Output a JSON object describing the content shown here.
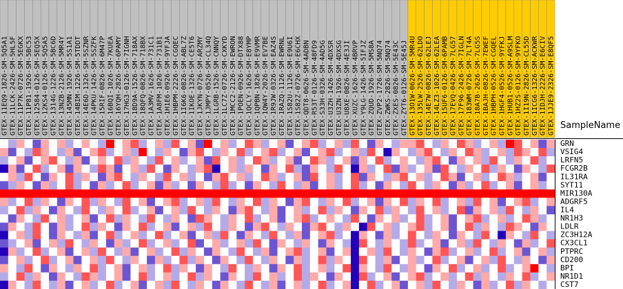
{
  "chart_data": {
    "type": "heatmap",
    "column_title": "SampleName",
    "column_groups": [
      {
        "color": "#c0c0c0",
        "samples": [
          "GTEX-11EQ9-1826-SM-5Q5A1",
          "GTEX-11LCK-2426-SM-5HL5F",
          "GTEX-11P7K-0726-SM-5EGKX",
          "GTEX-11P81-1926-SM-5BC53",
          "GTEX-12584-0126-SM-5EQ5X",
          "GTEX-12KS4-0126-SM-5Q5A5",
          "GTEX-1314G-1226-SM-5BC6D",
          "GTEX-13NZB-2126-SM-5MR4Y",
          "GTEX-145MN-1926-SM-5S1A1",
          "GTEX-14BIM-1226-SM-5TDDT",
          "GTEX-14E6D-1326-SM-5SZNR",
          "GTEX-14PKU-1426-SM-5SZFK",
          "GTEX-15RIF-0826-SM-6M47P",
          "GTEX-16BQI-1026-SM-7KUEA",
          "GTEX-16YQH-2826-SM-6PAMY",
          "GTEX-17HG3-0126-SM-7IGNH",
          "GTEX-18D9A-1526-SM-718AX",
          "GTEX-18QFQ-0826-SM-718BX",
          "GTEX-1A3MV-1626-SM-731C1",
          "GTEX-1A8FM-1026-SM-731B1",
          "GTEX-1H1E6-0926-SM-9YFJA",
          "GTEX-1HBPM-2226-SM-CGQEC",
          "GTEX-1I6K6-0826-SM-ABL7Z",
          "GTEX-1IKOE-1326-SM-CE5T6",
          "GTEX-1JKYN-0726-SM-ARZMY",
          "GTEX-1JMPY-0526-SM-CL34Q",
          "GTEX-1LGRB-1526-SM-CNNQY",
          "GTEX-1LC7Z-0726-SM-CXKYD",
          "GTEX-1MCC2-2126-SM-EWRON",
          "GTEX-1POEN-0926-SM-DTX88",
          "GTEX-1QCLY-1626-SM-E8YMP",
          "GTEX-1QPBN-1826-SM-E9VMR",
          "GTEX-1QW4Y-2026-SM-EV7BE",
          "GTEX-1R9JW-0326-SM-EAZ4S",
          "GTEX-1RAZQ-1126-SM-EWRNL",
          "GTEX-1S82U-1126-SM-E9U6I",
          "GTEX-1S82Z-0726-SM-E6CHX",
          "GTEX-QDT8-0626-SM-4ADBN",
          "GTEX-R53T-0126-SM-48FD9",
          "GTEX-S33H-0326-SM-4AD5G",
          "GTEX-U3ZH-1426-SM-4DXSR",
          "GTEX-U3ZN-1926-SM-4DXSG",
          "GTEX-U8XE-0826-SM-4E3JI",
          "GTEX-XUZC-1626-SM-4BRVP",
          "GTEX-Y9LG-1426-SM-5IFJZ",
          "GTEX-ZQUD-1926-SM-5MS8A",
          "GTEX-ZVP2-1726-SM-5NQ74",
          "GTEX-ZWKS-2826-SM-5NQ74",
          "GTEX-ZXES-0826-SM-5E43C",
          "GTEX-ZYT6-0126-SM-5E45J"
        ]
      },
      {
        "color": "#ffcc00",
        "samples": [
          "GTEX-13O1W-0626-SM-5MR4U",
          "GTEX-135LW-2526-SM-62LDO",
          "GTEX-14E7W-0826-SM-62LEJ",
          "GTEX-14LZ3-1026-SM-62LEA",
          "GTEX-15UF6-0126-SM-6PAMB",
          "GTEX-17EVQ-0426-SM-7LG57",
          "GTEX-17F96-2426-SM-7IGLN",
          "GTEX-183WM-0726-SM-7LT4A",
          "GTEX-18A7B-2626-SM-7LG5S",
          "GTEX-1BAJH-0826-SM-7EWEF",
          "GTEX-1HBPH-0526-SM-CGQEL",
          "GTEX-1HGF4-0526-SM-9YFKJ",
          "GTEX-1HUB1-0526-SM-A9SLM",
          "GTEX-1HZ2S-0126-SM-9YFKO",
          "GTEX-1I19N-2826-SM-CL55D",
          "GTEX-1ICG6-1326-SM-ACKWR",
          "GTEX-1IDJH-2226-SM-E6CIV",
          "GTEX-1JJE9-2326-SM-E8QF5"
        ]
      }
    ],
    "rows": [
      "GRN",
      "VSIG4",
      "LRFN5",
      "FCGR2B",
      "IL31RA",
      "SYT11",
      "MIR130A",
      "ADGRF5",
      "IL4",
      "NR1H3",
      "LDLR",
      "ZC3H12A",
      "CX3CL1",
      "PTPRC",
      "CD200",
      "BPI",
      "NR1D1",
      "CST7"
    ],
    "zlim": [
      -3,
      3
    ],
    "colorscale": {
      "low": "#2200bb",
      "mid": "#ffffff",
      "high": "#ff0000"
    },
    "values": [
      [
        0,
        -1,
        1,
        0,
        -2,
        1,
        0,
        1,
        -1,
        0,
        1,
        0,
        -1,
        3,
        0,
        1,
        2,
        -1,
        0,
        1,
        -1,
        2,
        0,
        1,
        -2,
        3,
        0,
        1,
        -1,
        0,
        2,
        1,
        -1,
        0,
        1,
        -2,
        0,
        1,
        2,
        -1,
        0,
        1,
        -1,
        2,
        0,
        -2,
        1,
        0,
        -1,
        1,
        1,
        2,
        0,
        -1,
        1,
        0,
        2,
        1,
        -1,
        0,
        1,
        -1,
        3,
        2,
        0,
        1,
        -2,
        1
      ],
      [
        1,
        -2,
        0,
        -1,
        2,
        1,
        0,
        -1,
        1,
        -2,
        0,
        1,
        2,
        -1,
        0,
        1,
        -1,
        3,
        0,
        -1,
        1,
        0,
        -2,
        1,
        2,
        0,
        -1,
        1,
        0,
        2,
        -1,
        0,
        1,
        2,
        -1,
        0,
        1,
        -2,
        0,
        1,
        2,
        -1,
        0,
        1,
        -1,
        2,
        0,
        -3,
        1,
        0,
        -1,
        1,
        2,
        0,
        -1,
        1,
        0,
        2,
        1,
        -1,
        0,
        1,
        -1,
        2,
        1,
        0,
        2,
        -1
      ],
      [
        -1,
        0,
        1,
        -2,
        0,
        1,
        2,
        0,
        -1,
        1,
        -2,
        0,
        1,
        0,
        2,
        -1,
        1,
        0,
        -1,
        2,
        0,
        1,
        -1,
        0,
        1,
        -2,
        2,
        0,
        1,
        -1,
        0,
        2,
        1,
        -1,
        0,
        1,
        -2,
        0,
        2,
        1,
        -1,
        0,
        1,
        -2,
        1,
        0,
        2,
        -1,
        0,
        1,
        0,
        -1,
        1,
        2,
        0,
        -2,
        1,
        0,
        1,
        -1,
        2,
        0,
        -1,
        1,
        0,
        2,
        -1,
        0
      ],
      [
        -3,
        1,
        -2,
        0,
        2,
        -1,
        0,
        1,
        -2,
        1,
        0,
        -1,
        2,
        1,
        -2,
        0,
        1,
        -1,
        2,
        0,
        -2,
        1,
        0,
        -1,
        1,
        2,
        -3,
        0,
        1,
        -1,
        1,
        0,
        -2,
        1,
        0,
        2,
        -1,
        -2,
        1,
        0,
        -1,
        2,
        0,
        -3,
        1,
        -1,
        0,
        2,
        -2,
        1,
        -1,
        0,
        1,
        -2,
        2,
        0,
        -1,
        1,
        0,
        2,
        -1,
        1,
        0,
        -2,
        1,
        0,
        -1,
        2
      ],
      [
        0,
        1,
        -1,
        2,
        0,
        -2,
        1,
        0,
        2,
        -1,
        1,
        0,
        -2,
        1,
        2,
        0,
        -1,
        1,
        0,
        -1,
        2,
        0,
        1,
        -1,
        0,
        -2,
        1,
        2,
        0,
        1,
        -1,
        0,
        2,
        1,
        -1,
        0,
        1,
        -2,
        2,
        0,
        1,
        -1,
        0,
        2,
        -2,
        1,
        0,
        -1,
        1,
        2,
        0,
        1,
        -1,
        0,
        2,
        1,
        -2,
        0,
        1,
        -1,
        0,
        2,
        1,
        -1,
        0,
        1,
        -2,
        0
      ],
      [
        -2,
        -1,
        1,
        0,
        -2,
        1,
        -1,
        0,
        2,
        -1,
        0,
        -2,
        1,
        -1,
        0,
        2,
        -1,
        0,
        1,
        -2,
        1,
        -1,
        0,
        -2,
        1,
        0,
        -1,
        2,
        -1,
        0,
        -2,
        1,
        0,
        -1,
        2,
        0,
        -1,
        1,
        -2,
        0,
        1,
        -1,
        0,
        2,
        -1,
        0,
        -2,
        1,
        0,
        -1,
        2,
        0,
        -1,
        1,
        0,
        -2,
        1,
        -1,
        0,
        2,
        -1,
        0,
        1,
        -2,
        0,
        1,
        -1,
        0
      ],
      [
        3,
        3,
        3,
        3,
        3,
        3,
        3,
        3,
        3,
        3,
        3,
        3,
        3,
        3,
        3,
        3,
        3,
        3,
        3,
        3,
        3,
        3,
        3,
        3,
        3,
        3,
        3,
        3,
        3,
        3,
        3,
        3,
        3,
        3,
        3,
        3,
        3,
        3,
        3,
        3,
        3,
        3,
        3,
        3,
        3,
        3,
        3,
        3,
        3,
        3,
        3,
        3,
        3,
        3,
        3,
        3,
        3,
        3,
        3,
        3,
        3,
        3,
        3,
        3,
        3,
        3,
        3,
        3
      ],
      [
        1,
        -1,
        0,
        2,
        -1,
        1,
        0,
        -2,
        1,
        0,
        2,
        -1,
        1,
        0,
        -1,
        2,
        0,
        1,
        -2,
        0,
        1,
        2,
        -1,
        0,
        1,
        -1,
        2,
        0,
        -1,
        1,
        0,
        2,
        -1,
        1,
        0,
        -2,
        1,
        2,
        0,
        -1,
        1,
        0,
        2,
        -1,
        0,
        1,
        -2,
        1,
        0,
        2,
        -1,
        1,
        0,
        2,
        -1,
        0,
        1,
        -1,
        2,
        0,
        1,
        -2,
        0,
        1,
        2,
        -1,
        0,
        1
      ],
      [
        -1,
        0,
        2,
        -1,
        1,
        0,
        -2,
        1,
        0,
        -1,
        2,
        0,
        -1,
        1,
        0,
        2,
        -1,
        0,
        1,
        -2,
        0,
        1,
        -1,
        2,
        0,
        -1,
        1,
        0,
        -2,
        1,
        2,
        0,
        -1,
        1,
        -2,
        0,
        1,
        -1,
        0,
        2,
        -1,
        1,
        0,
        -2,
        1,
        0,
        2,
        -1,
        1,
        0,
        -1,
        2,
        0,
        1,
        -1,
        0,
        2,
        -2,
        1,
        0,
        1,
        -1,
        2,
        0,
        -1,
        1,
        0,
        -2
      ],
      [
        0,
        -2,
        1,
        0,
        -1,
        2,
        0,
        1,
        -1,
        0,
        1,
        -2,
        0,
        2,
        -1,
        1,
        0,
        -1,
        2,
        0,
        -1,
        1,
        0,
        -2,
        2,
        1,
        0,
        -1,
        1,
        0,
        2,
        -1,
        0,
        1,
        -2,
        0,
        1,
        2,
        -1,
        0,
        1,
        0,
        -1,
        2,
        0,
        -2,
        1,
        0,
        1,
        -1,
        0,
        2,
        -1,
        0,
        1,
        -2,
        0,
        1,
        2,
        -1,
        0,
        1,
        -1,
        0,
        2,
        1,
        -1,
        0
      ],
      [
        -2,
        1,
        0,
        -1,
        2,
        0,
        -2,
        1,
        -1,
        0,
        2,
        -1,
        1,
        0,
        -2,
        1,
        0,
        2,
        -1,
        0,
        1,
        -2,
        0,
        1,
        -1,
        2,
        0,
        -1,
        1,
        0,
        -2,
        1,
        2,
        0,
        -1,
        1,
        0,
        -2,
        1,
        2,
        0,
        -1,
        1,
        0,
        -3,
        2,
        0,
        1,
        -1,
        0,
        1,
        2,
        -1,
        0,
        1,
        -2,
        0,
        2,
        -1,
        1,
        0,
        -1,
        2,
        1,
        0,
        -2,
        1,
        0
      ],
      [
        -3,
        0,
        1,
        -1,
        2,
        0,
        -2,
        1,
        0,
        -1,
        1,
        -2,
        0,
        2,
        -1,
        0,
        1,
        -1,
        0,
        2,
        -1,
        0,
        1,
        -2,
        0,
        1,
        -1,
        2,
        0,
        -2,
        1,
        0,
        -1,
        2,
        0,
        -1,
        1,
        -2,
        0,
        1,
        2,
        -1,
        0,
        -3,
        1,
        0,
        -2,
        1,
        -1,
        0,
        2,
        0,
        -1,
        1,
        0,
        -2,
        1,
        0,
        -1,
        2,
        0,
        -3,
        1,
        0,
        -1,
        2,
        0,
        -1
      ],
      [
        -2,
        -1,
        0,
        1,
        -2,
        0,
        1,
        -1,
        2,
        0,
        -1,
        1,
        0,
        -2,
        1,
        -1,
        0,
        2,
        -1,
        0,
        1,
        -1,
        0,
        2,
        -2,
        0,
        1,
        -1,
        0,
        1,
        -1,
        2,
        0,
        -2,
        1,
        0,
        -1,
        1,
        0,
        -2,
        1,
        0,
        -1,
        -3,
        2,
        0,
        -1,
        1,
        0,
        -1,
        2,
        -1,
        0,
        1,
        -2,
        0,
        1,
        -1,
        2,
        0,
        -1,
        1,
        0,
        -2,
        1,
        -1,
        0,
        2
      ],
      [
        -3,
        1,
        -1,
        0,
        2,
        -1,
        0,
        1,
        -2,
        0,
        1,
        -1,
        2,
        0,
        -1,
        1,
        -2,
        0,
        1,
        -1,
        0,
        2,
        -1,
        1,
        0,
        -2,
        1,
        0,
        -1,
        2,
        0,
        -1,
        1,
        -2,
        0,
        1,
        2,
        -1,
        0,
        1,
        -2,
        0,
        1,
        -3,
        0,
        1,
        -1,
        2,
        0,
        -1,
        1,
        0,
        -2,
        1,
        2,
        -1,
        0,
        1,
        -1,
        0,
        2,
        -1,
        0,
        1,
        -2,
        0,
        1,
        -1
      ],
      [
        -2,
        0,
        1,
        -1,
        0,
        2,
        -1,
        0,
        1,
        -2,
        0,
        1,
        -1,
        2,
        0,
        -1,
        1,
        0,
        -2,
        1,
        -1,
        0,
        2,
        -1,
        1,
        0,
        -2,
        1,
        0,
        -1,
        2,
        0,
        -1,
        1,
        0,
        -2,
        1,
        -1,
        0,
        2,
        -1,
        1,
        0,
        -3,
        2,
        0,
        -1,
        1,
        -2,
        0,
        1,
        -1,
        0,
        2,
        -1,
        0,
        1,
        -2,
        0,
        1,
        -1,
        2,
        0,
        -1,
        1,
        0,
        -2,
        1
      ],
      [
        1,
        0,
        -1,
        2,
        0,
        -2,
        1,
        0,
        -1,
        1,
        0,
        2,
        -1,
        0,
        1,
        -2,
        0,
        1,
        -1,
        0,
        2,
        -1,
        1,
        0,
        -2,
        1,
        0,
        -1,
        2,
        0,
        -1,
        1,
        0,
        -2,
        1,
        0,
        2,
        -1,
        0,
        1,
        -1,
        0,
        2,
        -3,
        1,
        0,
        -1,
        2,
        0,
        -1,
        1,
        0,
        -2,
        1,
        0,
        2,
        -1,
        0,
        1,
        -1,
        0,
        2,
        -1,
        0,
        1,
        3,
        0,
        -1
      ],
      [
        -1,
        0,
        2,
        -1,
        1,
        0,
        -2,
        1,
        0,
        -1,
        2,
        1,
        -1,
        0,
        1,
        -2,
        0,
        2,
        -1,
        0,
        1,
        -1,
        0,
        2,
        -1,
        1,
        0,
        -2,
        1,
        0,
        -1,
        2,
        0,
        1,
        -1,
        0,
        2,
        -1,
        1,
        0,
        -2,
        1,
        0,
        -3,
        2,
        -1,
        0,
        1,
        -2,
        0,
        1,
        2,
        -1,
        0,
        1,
        -1,
        0,
        2,
        -1,
        1,
        0,
        -1,
        1,
        0,
        2,
        -1,
        0,
        1
      ],
      [
        -3,
        1,
        0,
        -1,
        2,
        0,
        -1,
        1,
        -2,
        0,
        1,
        -1,
        0,
        2,
        -1,
        0,
        1,
        -2,
        0,
        1,
        -1,
        2,
        0,
        -1,
        1,
        0,
        -2,
        1,
        0,
        -1,
        2,
        0,
        -1,
        1,
        -2,
        0,
        1,
        -1,
        0,
        2,
        -1,
        0,
        1,
        -3,
        0,
        2,
        -1,
        0,
        1,
        -2,
        0,
        1,
        -1,
        2,
        0,
        -1,
        1,
        0,
        -2,
        1,
        -1,
        0,
        2,
        -1,
        1,
        0,
        -1,
        0
      ]
    ]
  }
}
